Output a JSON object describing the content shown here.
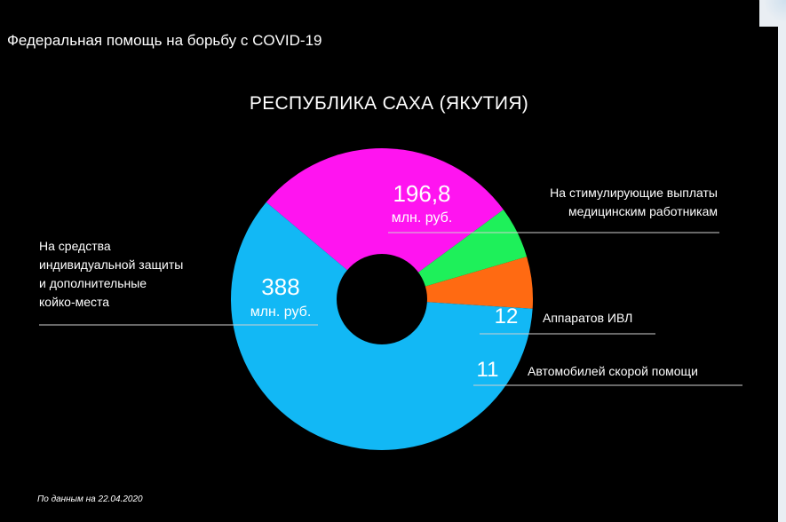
{
  "header": {
    "title": "Федеральная помощь на борьбу с COVID-19"
  },
  "footnote": "По данным на 22.04.2020",
  "colors": {
    "background": "#000000",
    "magenta": "#ff14f0",
    "blue": "#12b8f5",
    "green": "#1ef05a",
    "orange": "#ff6a12",
    "text": "#ffffff",
    "rule": "#d0d0d0"
  },
  "chart_data": {
    "type": "pie",
    "title": "РЕСПУБЛИКА САХА (ЯКУТИЯ)",
    "slices": [
      {
        "value_label": "196,8",
        "unit": "млн. руб.",
        "label_lines": [
          "На стимулирующие выплаты",
          "медицинским работникам"
        ],
        "share": 0.2878,
        "color": "#ff14f0"
      },
      {
        "value_label": "12",
        "unit": "",
        "label_lines": [
          "Аппаратов ИВЛ"
        ],
        "share": 0.0556,
        "color": "#1ef05a"
      },
      {
        "value_label": "11",
        "unit": "",
        "label_lines": [
          "Автомобилей скорой помощи"
        ],
        "share": 0.0556,
        "color": "#ff6a12"
      },
      {
        "value_label": "388",
        "unit": "млн. руб.",
        "label_lines": [
          "На средства",
          "индивидуальной защиты",
          "и дополнительные",
          "койко-места"
        ],
        "share": 0.601,
        "color": "#12b8f5"
      }
    ]
  }
}
